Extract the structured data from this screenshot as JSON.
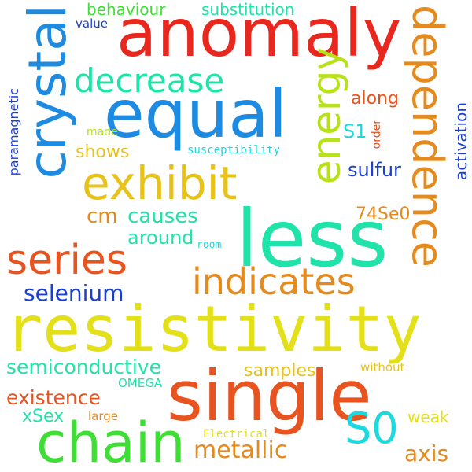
{
  "words": {
    "anomaly": "anomaly",
    "equal": "equal",
    "less": "less",
    "resistivity": "resistivity",
    "single": "single",
    "chain": "chain",
    "crystal": "crystal",
    "dependence": "dependence",
    "energy": "energy",
    "exhibit": "exhibit",
    "series": "series",
    "indicates": "indicates",
    "decrease": "decrease",
    "s0": "S0",
    "metallic": "metallic",
    "selenium": "selenium",
    "semiconductive": "semiconductive",
    "existence": "existence",
    "causes": "causes",
    "around": "around",
    "samples": "samples",
    "axis": "axis",
    "cm": "cm",
    "shows": "shows",
    "sulfur": "sulfur",
    "se0_74": "74Se0",
    "s1": "S1",
    "along": "along",
    "behaviour": "behaviour",
    "substitution": "substitution",
    "value": "value",
    "made": "made",
    "susceptibility": "susceptibility",
    "paramagnetic": "paramagnetic",
    "activation": "activation",
    "order": "order",
    "room": "room",
    "omega": "OMEGA",
    "without": "without",
    "xsex": "xSex",
    "large": "large",
    "weak": "weak",
    "electrical": "Electrical"
  },
  "colors": {
    "red": "#e8271f",
    "orange_red": "#e8531f",
    "orange": "#e58a1c",
    "gold": "#e6c21b",
    "yellow": "#e3e01a",
    "yellow_green": "#b7e21a",
    "green": "#3fde34",
    "teal": "#1fe3a8",
    "cyan": "#1cd9e0",
    "blue": "#1e8be3",
    "dark_blue": "#1b3fd0"
  }
}
